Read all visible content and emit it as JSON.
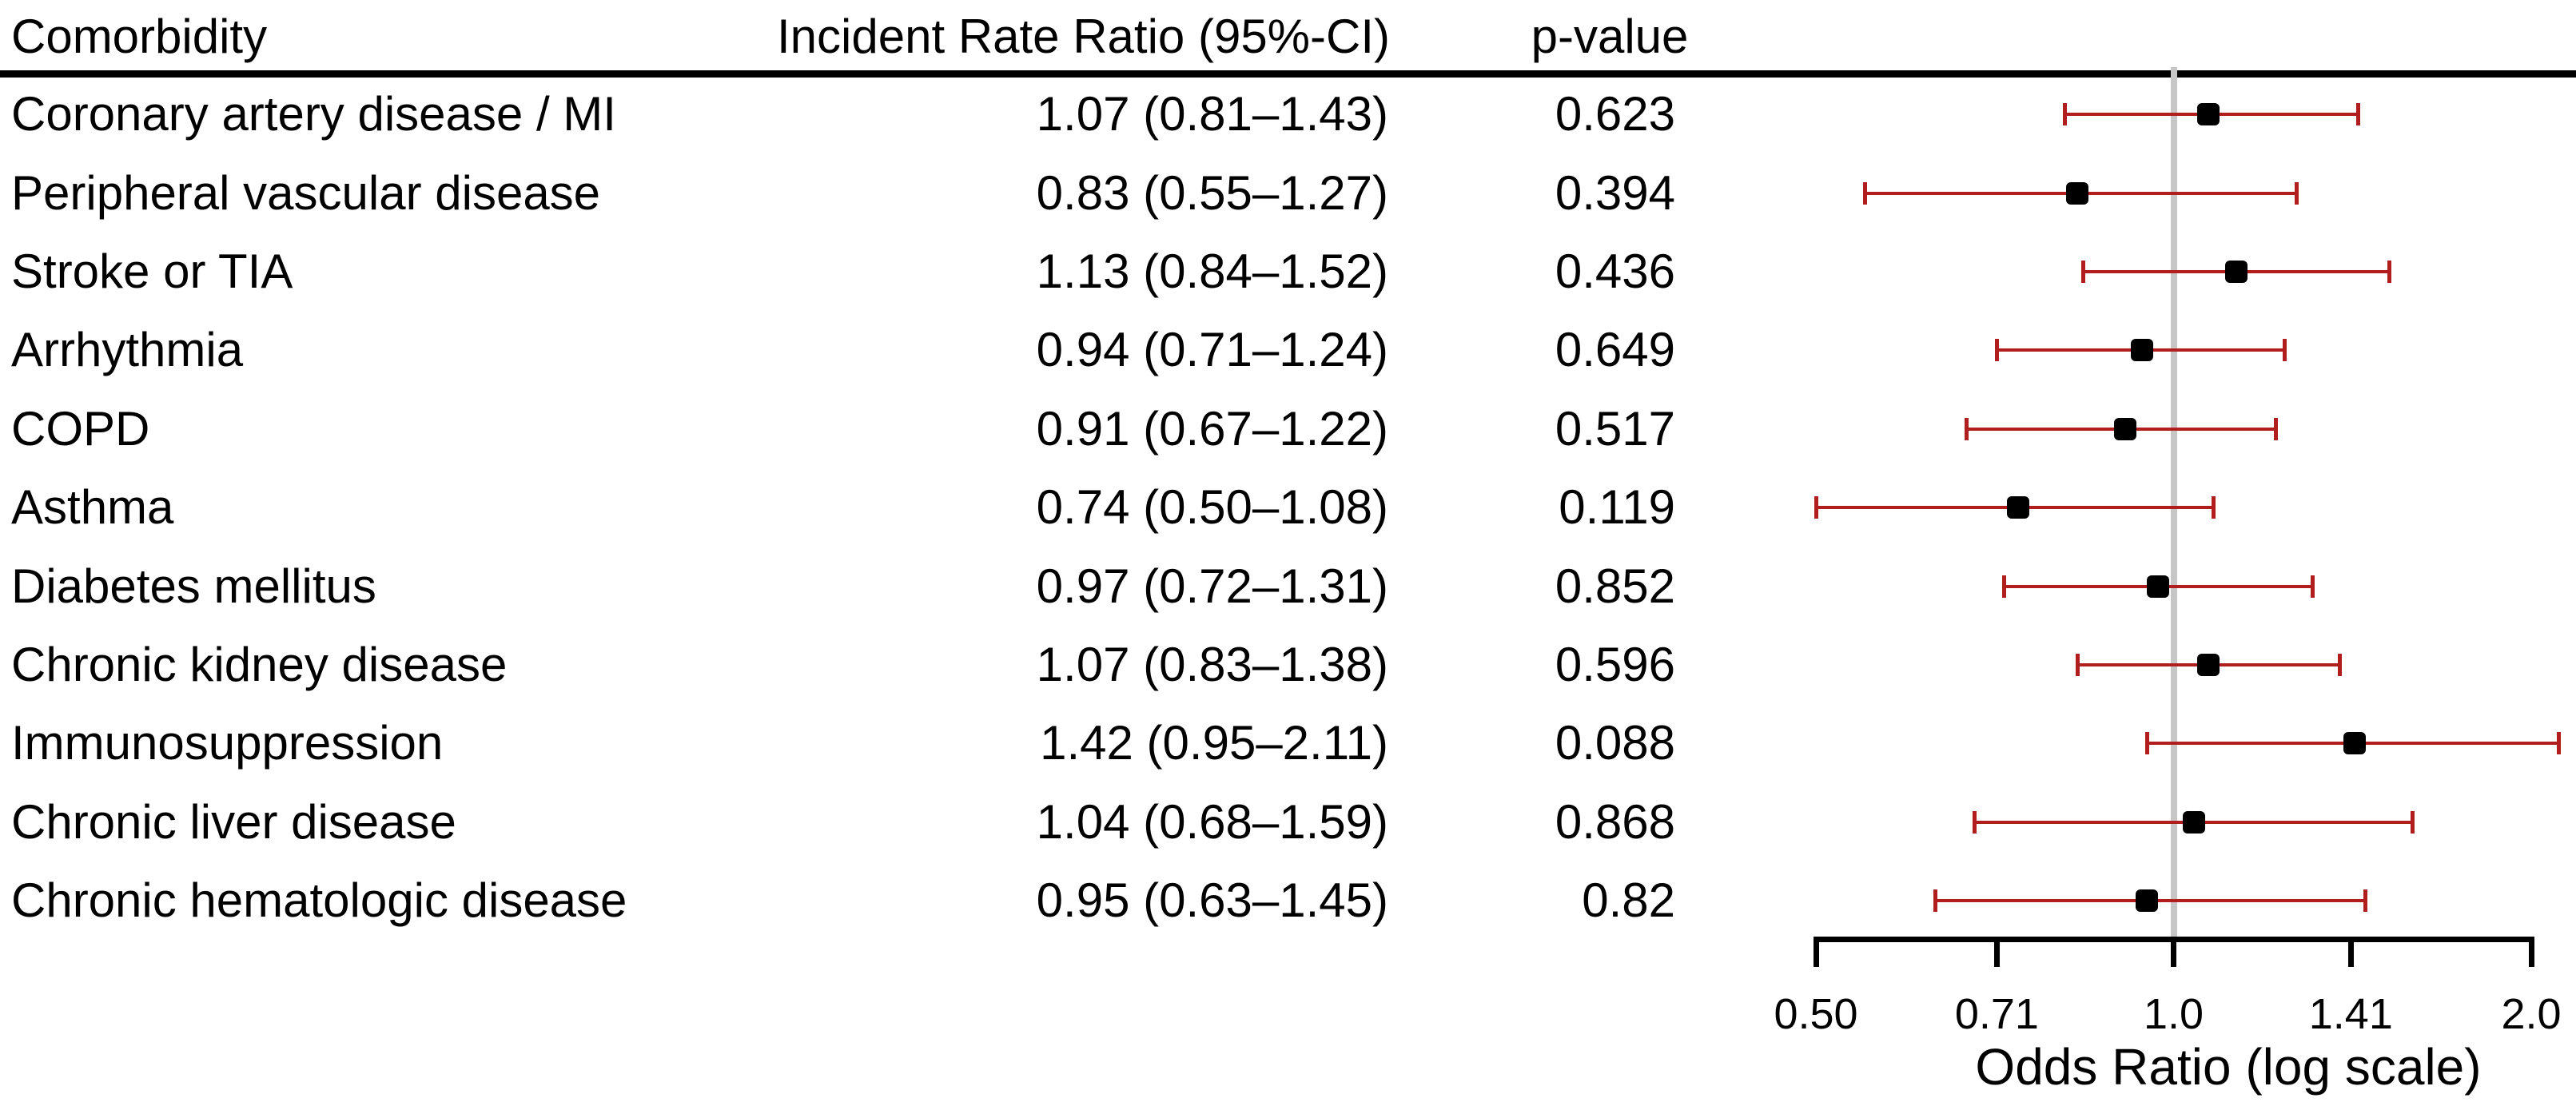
{
  "chart_data": {
    "type": "forest",
    "title": "",
    "columns": {
      "comorbidity": "Comorbidity",
      "irr": "Incident Rate Ratio (95%-CI)",
      "pvalue": "p-value"
    },
    "rows": [
      {
        "label": "Coronary artery disease / MI",
        "irr_text": "1.07 (0.81–1.43)",
        "p_text": "0.623",
        "est": 1.07,
        "lo": 0.81,
        "hi": 1.43
      },
      {
        "label": "Peripheral vascular disease",
        "irr_text": "0.83 (0.55–1.27)",
        "p_text": "0.394",
        "est": 0.83,
        "lo": 0.55,
        "hi": 1.27
      },
      {
        "label": "Stroke or TIA",
        "irr_text": "1.13 (0.84–1.52)",
        "p_text": "0.436",
        "est": 1.13,
        "lo": 0.84,
        "hi": 1.52
      },
      {
        "label": "Arrhythmia",
        "irr_text": "0.94 (0.71–1.24)",
        "p_text": "0.649",
        "est": 0.94,
        "lo": 0.71,
        "hi": 1.24
      },
      {
        "label": "COPD",
        "irr_text": "0.91 (0.67–1.22)",
        "p_text": "0.517",
        "est": 0.91,
        "lo": 0.67,
        "hi": 1.22
      },
      {
        "label": "Asthma",
        "irr_text": "0.74 (0.50–1.08)",
        "p_text": "0.119",
        "est": 0.74,
        "lo": 0.5,
        "hi": 1.08
      },
      {
        "label": "Diabetes mellitus",
        "irr_text": "0.97 (0.72–1.31)",
        "p_text": "0.852",
        "est": 0.97,
        "lo": 0.72,
        "hi": 1.31
      },
      {
        "label": "Chronic kidney disease",
        "irr_text": "1.07 (0.83–1.38)",
        "p_text": "0.596",
        "est": 1.07,
        "lo": 0.83,
        "hi": 1.38
      },
      {
        "label": "Immunosuppression",
        "irr_text": "1.42 (0.95–2.11)",
        "p_text": "0.088",
        "est": 1.42,
        "lo": 0.95,
        "hi": 2.11
      },
      {
        "label": "Chronic liver disease",
        "irr_text": "1.04 (0.68–1.59)",
        "p_text": "0.868",
        "est": 1.04,
        "lo": 0.68,
        "hi": 1.59
      },
      {
        "label": "Chronic hematologic disease",
        "irr_text": "0.95 (0.63–1.45)",
        "p_text": "0.82",
        "est": 0.95,
        "lo": 0.63,
        "hi": 1.45
      }
    ],
    "x_axis": {
      "scale": "log",
      "range": [
        0.5,
        2.0
      ],
      "ticks": [
        0.5,
        0.71,
        1.0,
        1.41,
        2.0
      ],
      "tick_labels": [
        "0.50",
        "0.71",
        "1.0",
        "1.41",
        "2.0"
      ],
      "label": "Odds Ratio (log scale)",
      "reference_line": 1.0
    },
    "legend": null,
    "grid": false,
    "colors": {
      "ci": "#B01E1E",
      "marker": "#000000",
      "reference_line": "#C6C6C6",
      "text": "#000000",
      "rule": "#000000"
    }
  }
}
